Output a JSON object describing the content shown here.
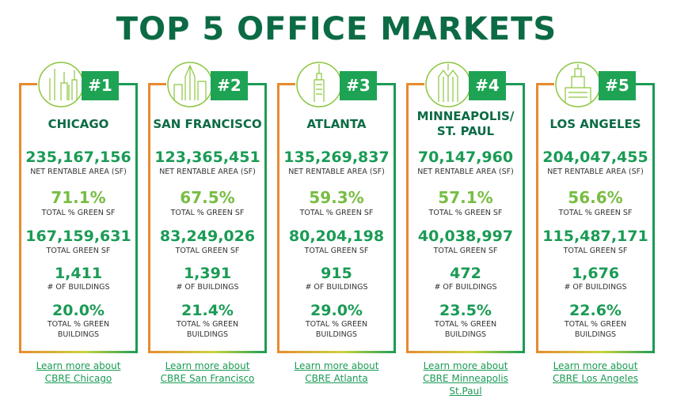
{
  "title": "TOP 5 OFFICE MARKETS",
  "colors": {
    "dark_green": "#0c6b44",
    "green": "#1a9b55",
    "light_green": "#78bd43",
    "orange": "#e88a2e"
  },
  "labels": {
    "nra": "NET RENTABLE AREA (SF)",
    "green_sf_pct": "TOTAL % GREEN SF",
    "green_sf": "TOTAL GREEN SF",
    "buildings": "# OF BUILDINGS",
    "green_bldg_pct_1": "TOTAL % GREEN",
    "green_bldg_pct_2": "BUILDINGS"
  },
  "markets": [
    {
      "rank": "#1",
      "city": "CHICAGO",
      "nra": "235,167,156",
      "green_sf_pct": "71.1%",
      "green_sf": "167,159,631",
      "buildings": "1,411",
      "green_bldg_pct": "20.0%",
      "link": [
        "Learn more about",
        "CBRE Chicago"
      ],
      "icon": "chicago-skyline-icon"
    },
    {
      "rank": "#2",
      "city": "SAN FRANCISCO",
      "nra": "123,365,451",
      "green_sf_pct": "67.5%",
      "green_sf": "83,249,026",
      "buildings": "1,391",
      "green_bldg_pct": "21.4%",
      "link": [
        "Learn more about",
        "CBRE San Francisco"
      ],
      "icon": "san-francisco-skyline-icon"
    },
    {
      "rank": "#3",
      "city": "ATLANTA",
      "nra": "135,269,837",
      "green_sf_pct": "59.3%",
      "green_sf": "80,204,198",
      "buildings": "915",
      "green_bldg_pct": "29.0%",
      "link": [
        "Learn more about",
        "CBRE Atlanta"
      ],
      "icon": "atlanta-tower-icon"
    },
    {
      "rank": "#4",
      "city": "MINNEAPOLIS/ ST. PAUL",
      "nra": "70,147,960",
      "green_sf_pct": "57.1%",
      "green_sf": "40,038,997",
      "buildings": "472",
      "green_bldg_pct": "23.5%",
      "link": [
        "Learn more about",
        "CBRE Minneapolis",
        "St.Paul"
      ],
      "icon": "minneapolis-tower-icon"
    },
    {
      "rank": "#5",
      "city": "LOS ANGELES",
      "nra": "204,047,455",
      "green_sf_pct": "56.6%",
      "green_sf": "115,487,171",
      "buildings": "1,676",
      "green_bldg_pct": "22.6%",
      "link": [
        "Learn more about",
        "CBRE Los Angeles"
      ],
      "icon": "los-angeles-cityhall-icon"
    }
  ]
}
